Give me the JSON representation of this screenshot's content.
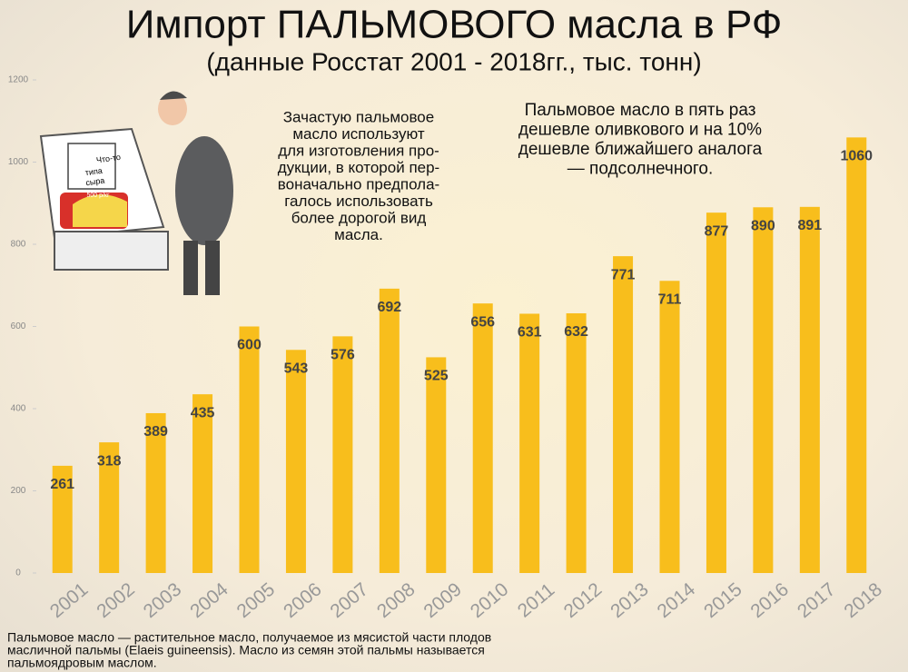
{
  "chart_data": {
    "type": "bar",
    "title": "Импорт ПАЛЬМОВОГО масла в РФ",
    "subtitle": "(данные Росстат 2001 - 2018гг., тыс. тонн)",
    "categories": [
      "2001",
      "2002",
      "2003",
      "2004",
      "2005",
      "2006",
      "2007",
      "2008",
      "2009",
      "2010",
      "2011",
      "2012",
      "2013",
      "2014",
      "2015",
      "2016",
      "2017",
      "2018"
    ],
    "values": [
      261,
      318,
      389,
      435,
      600,
      543,
      576,
      692,
      525,
      656,
      631,
      632,
      771,
      711,
      877,
      890,
      891,
      1060
    ],
    "color": "#f8be1c",
    "ylim": [
      0,
      1200
    ],
    "yticks": [
      0,
      200,
      400,
      600,
      800,
      1000,
      1200
    ],
    "annotations": [
      {
        "lines": [
          "Зачастую пальмовое",
          "масло используют",
          "для изготовления про-",
          "дукции, в которой пер-",
          "воначально предпола-",
          "галось использовать",
          "более дорогой вид",
          "масла."
        ]
      },
      {
        "lines": [
          "Пальмовое масло в пять раз",
          "дешевле оливкового и на 10%",
          "дешевле ближайшего аналога",
          "— подсолнечного."
        ]
      }
    ],
    "cartoon_labels": [
      "Что-то",
      "типа",
      "сыра",
      "500 р/кг"
    ],
    "footnote": [
      "Пальмовое масло — растительное масло, получаемое из мясистой части плодов",
      "масличной пальмы (Elaeis guineensis). Масло из семян этой пальмы называется",
      "пальмоядровым маслом."
    ]
  }
}
